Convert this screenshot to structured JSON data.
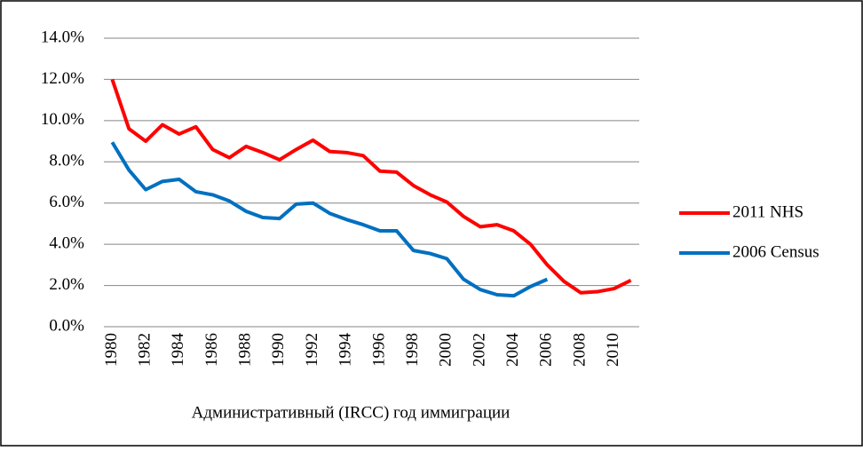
{
  "chart_data": {
    "type": "line",
    "x_label": "Административный (IRCC) год иммиграции",
    "x": [
      1980,
      1981,
      1982,
      1983,
      1984,
      1985,
      1986,
      1987,
      1988,
      1989,
      1990,
      1991,
      1992,
      1993,
      1994,
      1995,
      1996,
      1997,
      1998,
      1999,
      2000,
      2001,
      2002,
      2003,
      2004,
      2005,
      2006,
      2007,
      2008,
      2009,
      2010,
      2011
    ],
    "series": [
      {
        "name": "2011 NHS",
        "color": "#ff0000",
        "values": [
          12.0,
          9.6,
          9.0,
          9.8,
          9.35,
          9.7,
          8.6,
          8.2,
          8.75,
          8.45,
          8.1,
          8.6,
          9.05,
          8.5,
          8.45,
          8.3,
          7.55,
          7.5,
          6.85,
          6.4,
          6.05,
          5.35,
          4.85,
          4.95,
          4.65,
          4.0,
          3.0,
          2.2,
          1.65,
          1.7,
          1.85,
          2.25
        ]
      },
      {
        "name": "2006 Census",
        "color": "#0070c0",
        "values": [
          8.95,
          7.6,
          6.65,
          7.05,
          7.15,
          6.55,
          6.4,
          6.1,
          5.6,
          5.3,
          5.25,
          5.95,
          6.0,
          5.5,
          5.2,
          4.95,
          4.65,
          4.65,
          3.7,
          3.55,
          3.3,
          2.3,
          1.8,
          1.55,
          1.5,
          1.95,
          2.3,
          null,
          null,
          null,
          null,
          null
        ]
      }
    ],
    "xlim": [
      1979.5,
      2011.5
    ],
    "xticks": [
      1980,
      1982,
      1984,
      1986,
      1988,
      1990,
      1992,
      1994,
      1996,
      1998,
      2000,
      2002,
      2004,
      2006,
      2008,
      2010
    ],
    "ylim": [
      0,
      14
    ],
    "yticks": [
      {
        "value": 0,
        "label": "0.0%"
      },
      {
        "value": 2,
        "label": "2.0%"
      },
      {
        "value": 4,
        "label": "4.0%"
      },
      {
        "value": 6,
        "label": "6.0%"
      },
      {
        "value": 8,
        "label": "8.0%"
      },
      {
        "value": 10,
        "label": "10.0%"
      },
      {
        "value": 12,
        "label": "12.0%"
      },
      {
        "value": 14,
        "label": "14.0%"
      }
    ],
    "grid": true,
    "legend": "right"
  }
}
